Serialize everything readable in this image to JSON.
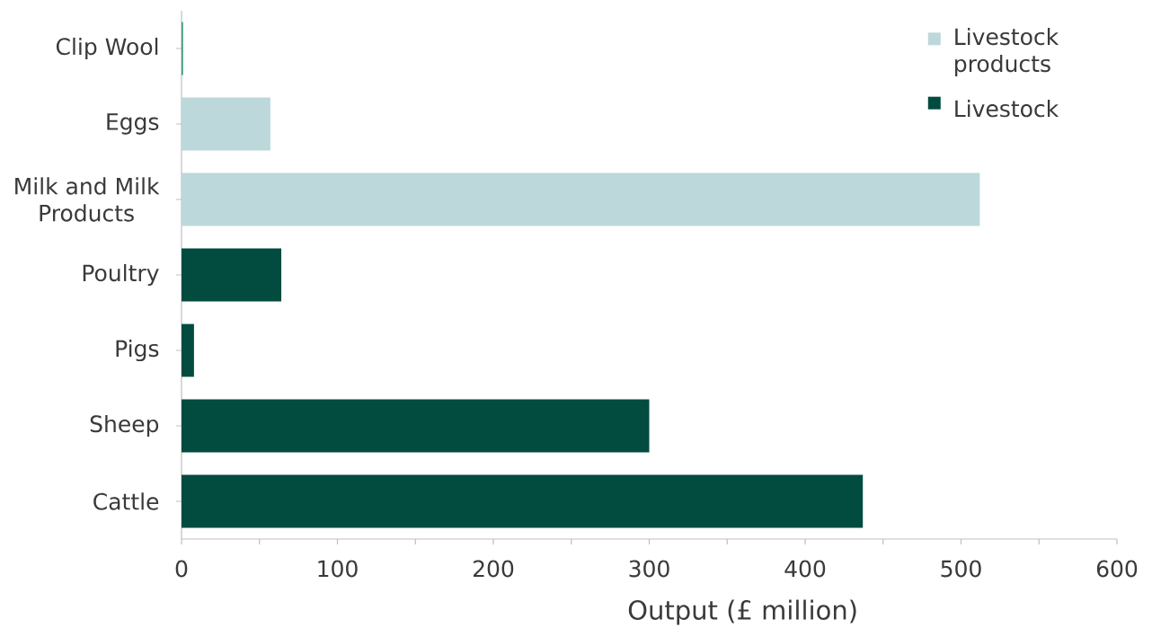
{
  "chart_data": {
    "type": "bar",
    "orientation": "horizontal",
    "categories": [
      "Clip Wool",
      "Eggs",
      "Milk and Milk Products",
      "Poultry",
      "Pigs",
      "Sheep",
      "Cattle"
    ],
    "series": [
      {
        "name": "Livestock products",
        "color": "#bcd8da",
        "colors": [
          "#3c9a82",
          "#bcd8da",
          "#bcd8da",
          null,
          null,
          null,
          null
        ],
        "values": [
          1,
          57,
          512,
          null,
          null,
          null,
          null
        ]
      },
      {
        "name": "Livestock",
        "color": "#024b3f",
        "values": [
          null,
          null,
          null,
          64,
          8,
          300,
          437
        ]
      }
    ],
    "xlabel": "Output (£ million)",
    "xlim": [
      0,
      600
    ],
    "xticks": [
      0,
      {
        "value": 50,
        "label": null
      },
      100,
      {
        "value": 150,
        "label": null
      },
      200,
      {
        "value": 250,
        "label": null
      },
      300,
      {
        "value": 350,
        "label": null
      },
      400,
      {
        "value": 450,
        "label": null
      },
      500,
      {
        "value": 550,
        "label": null
      },
      600
    ],
    "legend": "top right"
  }
}
